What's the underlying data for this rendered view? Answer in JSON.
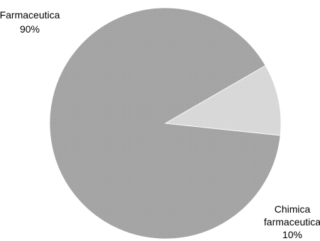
{
  "chart_data": {
    "type": "pie",
    "slices": [
      {
        "label_lines": [
          "Farmaceutica",
          "90%"
        ],
        "value": 90,
        "color": "#a6a6a6"
      },
      {
        "label_lines": [
          "Chimica",
          "farmaceutica",
          "10%"
        ],
        "value": 10,
        "color": "#d9d9d9"
      }
    ],
    "legend": "none",
    "labels_position": "outside"
  }
}
